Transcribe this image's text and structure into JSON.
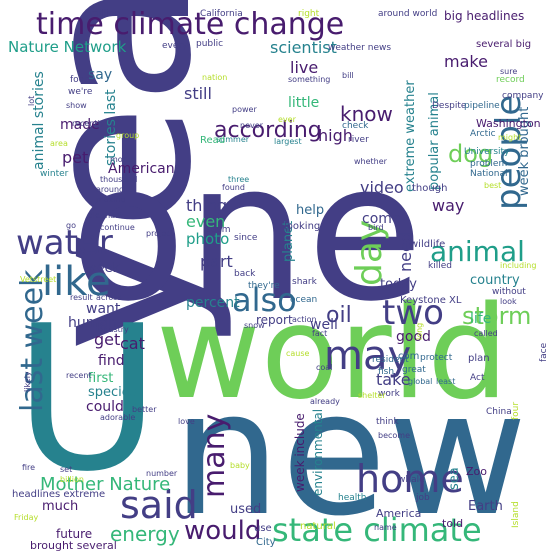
{
  "palette": {
    "purple": "#481c6e",
    "indigo": "#433e85",
    "blue": "#31688e",
    "teal": "#26828e",
    "green": "#1f9e89",
    "mint": "#35b779",
    "lime": "#6ece58",
    "yellow": "#b5de2b"
  },
  "words": {
    "year": "year",
    "one": "one",
    "new": "new",
    "world": "world",
    "u": "U",
    "time_climate_change": "time climate change",
    "water": "water",
    "animal": "animal",
    "people": "people",
    "like": "like",
    "day": "day",
    "also": "also",
    "two": "two",
    "may": "may",
    "said": "said",
    "home": "home",
    "state_climate": "state climate",
    "last_week": "last week",
    "many": "many",
    "would": "would",
    "mother_nature": "Mother Nature",
    "energy": "energy",
    "storm": "storm",
    "according": "according",
    "dog": "dog",
    "oil": "oil",
    "know": "know",
    "nature_network": "Nature Network",
    "scientist": "scientist",
    "make": "make",
    "live": "live",
    "say": "say",
    "still": "still",
    "little": "little",
    "stories_last": "stories last",
    "animal_stories": "animal stories",
    "extreme_weather": "extreme weather",
    "popular_animal": "popular animal",
    "week_brought": "week brought",
    "made": "made",
    "pet": "pet",
    "american": "American",
    "high": "high",
    "video": "video",
    "thing": "thing",
    "even": "even",
    "photo": "photo",
    "part": "part",
    "need": "need",
    "way": "way",
    "come": "come",
    "help": "help",
    "planet": "planet",
    "week": "week",
    "want": "want",
    "percent": "percent",
    "report": "report",
    "human": "human",
    "get": "get",
    "cat": "cat",
    "find": "find",
    "first": "first",
    "species": "species",
    "could": "could",
    "take": "take",
    "good": "good",
    "life": "life",
    "country": "country",
    "well": "well",
    "today": "today",
    "much": "much",
    "week_include": "week include",
    "environmental": "environmental",
    "future": "future",
    "used": "used",
    "sea": "sea",
    "earth": "Earth",
    "america": "America",
    "told": "told",
    "zoo": "Zoo",
    "brought_several": "brought several",
    "headlines_extreme": "headlines extreme",
    "city": "City",
    "use": "use",
    "natural": "natural",
    "big_headlines": "big headlines",
    "several_big": "several big",
    "washington": "Washington",
    "record": "record",
    "company": "company",
    "despite": "Despite",
    "pipeline": "pipeline",
    "arctic": "Arctic",
    "keystone_xl": "Keystone XL",
    "killed": "killed",
    "ocean": "ocean",
    "shark": "shark",
    "wildlife": "wildlife",
    "whether": "whether",
    "though": "though",
    "bird": "bird",
    "looking": "looking",
    "seem": "seem",
    "since": "since",
    "back": "back",
    "theyre": "they're",
    "action": "action",
    "fact": "fact",
    "resident": "resident",
    "fish": "fish",
    "com": "com",
    "protect": "protect",
    "plan": "plan",
    "great": "great",
    "global": "global",
    "least": "least",
    "act": "Act",
    "work": "work",
    "already": "already",
    "think": "think",
    "become": "become",
    "health": "health",
    "whale": "whale",
    "job": "job",
    "name": "name",
    "island": "Island",
    "china": "China",
    "four": "four",
    "face": "face",
    "called": "called",
    "long": "long",
    "without": "without",
    "look": "look",
    "including": "including",
    "best": "best",
    "university": "University",
    "problem": "problem",
    "national": "National",
    "sure": "sure",
    "might": "might",
    "check": "check",
    "river": "river",
    "something": "something",
    "bill": "bill",
    "never": "never",
    "ever": "ever",
    "largest": "largest",
    "summer": "summer",
    "three": "three",
    "found": "found",
    "read": "Read",
    "power": "power",
    "nation": "nation",
    "public": "public",
    "every": "every",
    "california": "California",
    "right": "right",
    "around_world": "around world",
    "weather_news": "weather news",
    "million": "million",
    "food": "food",
    "were": "we're",
    "show": "show",
    "lot": "lot",
    "area": "area",
    "recently": "recently",
    "group": "group",
    "month": "month",
    "winter": "winter",
    "thousand": "thousand",
    "around": "around",
    "making": "making",
    "go": "go",
    "continue": "continue",
    "elephant": "elephant",
    "project": "project",
    "vetstreet": "Vetstreet",
    "result": "result",
    "across": "across",
    "industry": "industry",
    "snow": "snow",
    "cause": "cause",
    "coal": "coal",
    "recent": "recent",
    "adorable": "adorable",
    "likely": "likely",
    "better": "better",
    "love": "love",
    "shelter": "shelter",
    "fire": "fire",
    "set": "set",
    "billion": "billion",
    "number": "number",
    "baby": "baby",
    "friday": "Friday"
  }
}
